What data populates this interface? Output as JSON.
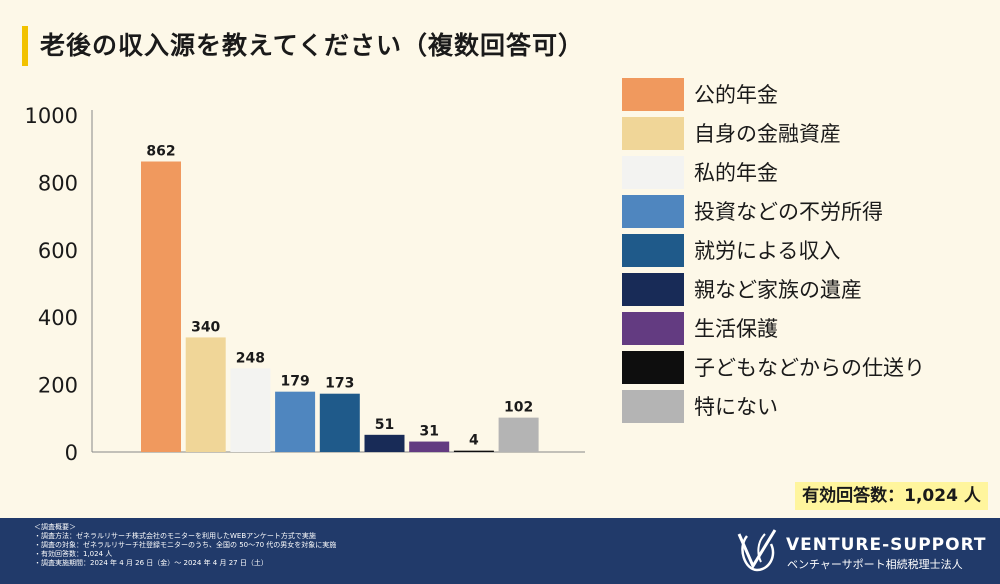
{
  "title": "老後の収入源を教えてください（複数回答可）",
  "chart_data": {
    "type": "bar",
    "title": "老後の収入源を教えてください（複数回答可）",
    "categories": [
      "公的年金",
      "自身の金融資産",
      "私的年金",
      "投資などの不労所得",
      "就労による収入",
      "親など家族の遺産",
      "生活保護",
      "子どもなどからの仕送り",
      "特にない"
    ],
    "values": [
      862,
      340,
      248,
      179,
      173,
      51,
      31,
      4,
      102
    ],
    "colors": [
      "#f0995e",
      "#f0d698",
      "#f3f3f1",
      "#4f86bf",
      "#1f5a8a",
      "#182b57",
      "#633b81",
      "#0e0e0e",
      "#b4b4b4"
    ],
    "yticks": [
      "0",
      "200",
      "400",
      "600",
      "800",
      "1000"
    ],
    "ylim": [
      0,
      1000
    ],
    "legend_position": "right"
  },
  "total": "有効回答数：1,024 人",
  "footer": {
    "notes": [
      "＜調査概要＞",
      "・調査方法：ゼネラルリサーチ株式会社のモニターを利用したWEBアンケート方式で実施",
      "・調査の対象：ゼネラルリサーチ社登録モニターのうち、全国の 50〜70 代の男女を対象に実施",
      "・有効回答数：1,024 人",
      "・調査実施期間：2024 年 4 月 26 日（金）〜 2024 年 4 月 27 日（土）"
    ],
    "logo_name": "VENTURE-SUPPORT",
    "logo_sub": "ベンチャーサポート相続税理士法人"
  }
}
